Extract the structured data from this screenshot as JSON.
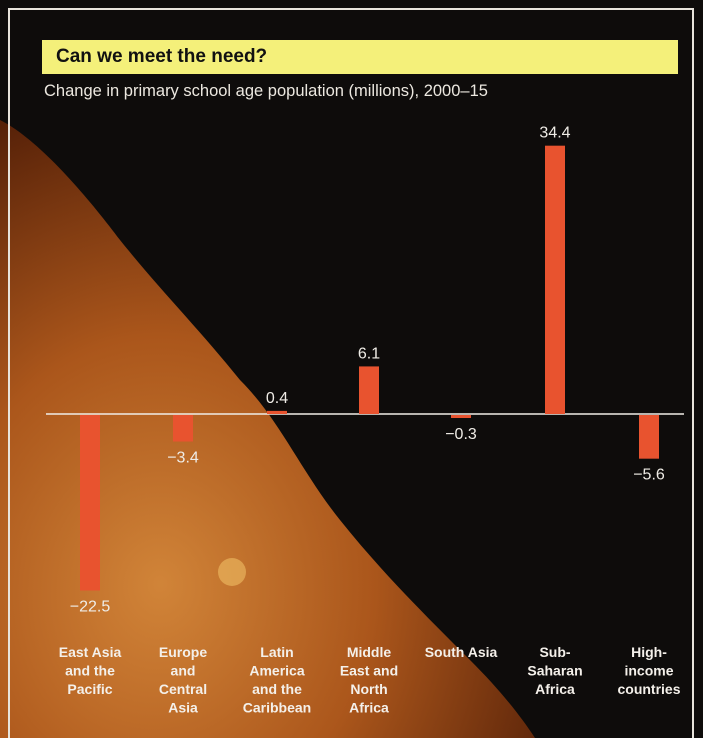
{
  "header": {
    "title": "Can we meet the need?",
    "subtitle": "Change in primary school age population (millions), 2000–15"
  },
  "colors": {
    "bar": "#e8532f",
    "title_background": "#f4f07a",
    "background": "#0e0c0b",
    "axis": "#f0ede8"
  },
  "chart_data": {
    "type": "bar",
    "title": "Can we meet the need?",
    "subtitle": "Change in primary school age population (millions), 2000–15",
    "categories": [
      "East Asia and the Pacific",
      "Europe and Central Asia",
      "Latin America and the Caribbean",
      "Middle East and North Africa",
      "South Asia",
      "Sub-Saharan Africa",
      "High-income countries"
    ],
    "category_lines": [
      [
        "East Asia",
        "and the",
        "Pacific"
      ],
      [
        "Europe",
        "and",
        "Central",
        "Asia"
      ],
      [
        "Latin",
        "America",
        "and the",
        "Caribbean"
      ],
      [
        "Middle",
        "East and",
        "North",
        "Africa"
      ],
      [
        "South Asia"
      ],
      [
        "Sub-",
        "Saharan",
        "Africa"
      ],
      [
        "High-",
        "income",
        "countries"
      ]
    ],
    "values": [
      -22.5,
      -3.4,
      0.4,
      6.1,
      -0.3,
      34.4,
      -5.6
    ],
    "value_labels": [
      "−22.5",
      "−3.4",
      "0.4",
      "6.1",
      "−0.3",
      "34.4",
      "−5.6"
    ],
    "xlabel": "",
    "ylabel": "",
    "ylim": [
      -22.5,
      34.4
    ],
    "grid": false,
    "legend": "none"
  }
}
